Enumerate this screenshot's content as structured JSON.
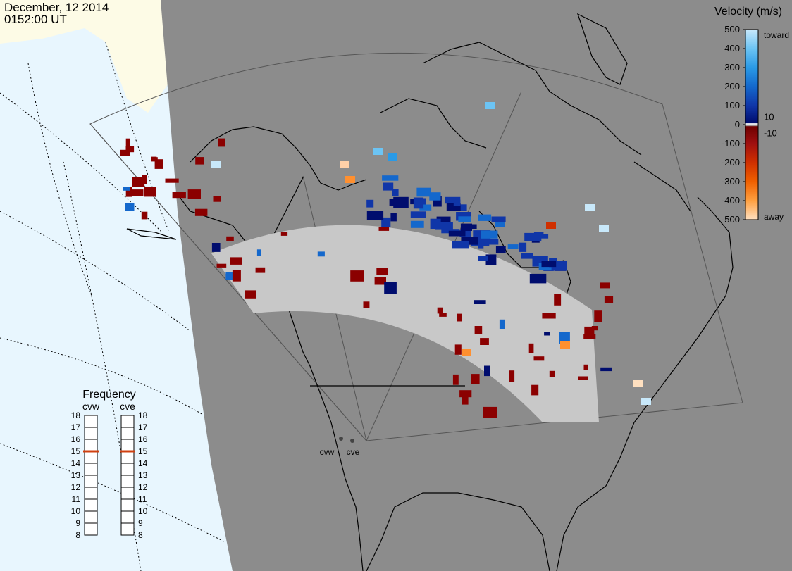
{
  "header": {
    "date": "December, 12 2014",
    "time": "0152:00 UT"
  },
  "colorbar": {
    "title": "Velocity (m/s)",
    "tick_labels": [
      "500",
      "400",
      "300",
      "200",
      "100",
      "0",
      "-100",
      "-200",
      "-300",
      "-400",
      "-500"
    ],
    "near_zero_labels": [
      "10",
      "-10"
    ],
    "toward_label": "toward",
    "away_label": "away",
    "stops": [
      {
        "v": 500,
        "color": "#c8e8fa"
      },
      {
        "v": 400,
        "color": "#6cc4f4"
      },
      {
        "v": 300,
        "color": "#2a9ae6"
      },
      {
        "v": 200,
        "color": "#1468cc"
      },
      {
        "v": 100,
        "color": "#1036a8"
      },
      {
        "v": 10,
        "color": "#000d6e"
      },
      {
        "v": 5,
        "color": "#ffffff"
      },
      {
        "v": -5,
        "color": "#aaaaaa"
      },
      {
        "v": -10,
        "color": "#6e0000"
      },
      {
        "v": -100,
        "color": "#a01010"
      },
      {
        "v": -200,
        "color": "#d03000"
      },
      {
        "v": -300,
        "color": "#f06000"
      },
      {
        "v": -400,
        "color": "#ffa040"
      },
      {
        "v": -500,
        "color": "#ffe0c0"
      }
    ]
  },
  "frequency": {
    "title": "Frequency",
    "radars": [
      "cvw",
      "cve"
    ],
    "ticks": [
      18,
      17,
      16,
      15,
      14,
      13,
      12,
      11,
      10,
      9,
      8
    ],
    "values": [
      15,
      15
    ]
  },
  "sites": {
    "labels": [
      "cvw",
      "cve"
    ]
  },
  "colors": {
    "ocean": "#e8f6fe",
    "land_daylight": "#fdfbe6",
    "night": "#8c8c8c",
    "ground_scatter": "#c8c8c8",
    "marker_line": "#d04010"
  }
}
